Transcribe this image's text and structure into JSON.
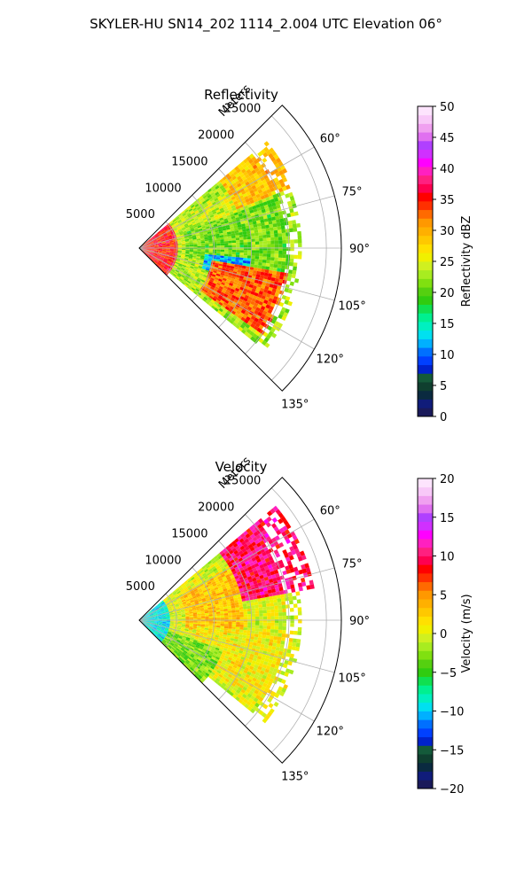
{
  "suptitle": "SKYLER-HU  SN14_202  1114_2.004 UTC Elevation 06°",
  "chart_data": [
    {
      "type": "heatmap",
      "subtype": "polar-sector",
      "title": "Reflectivity",
      "radial_axis_label": "Meters",
      "radial_ticks": [
        5000,
        10000,
        15000,
        20000,
        25000
      ],
      "radial_tick_labels": [
        "5000",
        "10000",
        "15000",
        "20000",
        "25000"
      ],
      "rmax": 27000,
      "azimuth_range_deg": [
        45,
        135
      ],
      "azimuth_ticks_deg": [
        60,
        75,
        90,
        105,
        120,
        135
      ],
      "azimuth_tick_labels": [
        "60°",
        "75°",
        "90°",
        "105°",
        "120°",
        "135°"
      ],
      "grid": true,
      "colorbar": {
        "label": "Reflectivity dBZ",
        "min": 0,
        "max": 50,
        "ticks": [
          0,
          5,
          10,
          15,
          20,
          25,
          30,
          35,
          40,
          45,
          50
        ],
        "tick_labels": [
          "0",
          "5",
          "10",
          "15",
          "20",
          "25",
          "30",
          "35",
          "40",
          "45",
          "50"
        ],
        "colors": [
          "#1a1a5a",
          "#101c7a",
          "#0a2a40",
          "#0f3f2f",
          "#145a3a",
          "#0022cc",
          "#0040ff",
          "#0070ff",
          "#00b0ff",
          "#00e0f0",
          "#00f0c0",
          "#00f090",
          "#10e050",
          "#30cc10",
          "#55d010",
          "#80e010",
          "#a8ec20",
          "#d0f020",
          "#f0f000",
          "#ffe000",
          "#ffc800",
          "#ffb000",
          "#ff9800",
          "#ff6a00",
          "#ff3000",
          "#ff0000",
          "#ff0050",
          "#ff2080",
          "#ff20c0",
          "#ff00ff",
          "#d030ff",
          "#b040ff",
          "#e070f0",
          "#f0a0f0",
          "#f8c8f8",
          "#fde4fd"
        ]
      },
      "regions": [
        {
          "az": [
            50,
            68
          ],
          "r": [
            14000,
            22000
          ],
          "value": 29
        },
        {
          "az": [
            55,
            85
          ],
          "r": [
            2000,
            14000
          ],
          "value": 24
        },
        {
          "az": [
            70,
            100
          ],
          "r": [
            6000,
            20000
          ],
          "value": 21
        },
        {
          "az": [
            95,
            108
          ],
          "r": [
            9000,
            15000
          ],
          "value": 12
        },
        {
          "az": [
            100,
            125
          ],
          "r": [
            10000,
            20000
          ],
          "value": 33
        },
        {
          "az": [
            50,
            135
          ],
          "r": [
            0,
            5000
          ],
          "value": 35
        }
      ]
    },
    {
      "type": "heatmap",
      "subtype": "polar-sector",
      "title": "Velocity",
      "radial_axis_label": "Meters",
      "radial_ticks": [
        5000,
        10000,
        15000,
        20000,
        25000
      ],
      "radial_tick_labels": [
        "5000",
        "10000",
        "15000",
        "20000",
        "25000"
      ],
      "rmax": 27000,
      "azimuth_range_deg": [
        45,
        135
      ],
      "azimuth_ticks_deg": [
        60,
        75,
        90,
        105,
        120,
        135
      ],
      "azimuth_tick_labels": [
        "60°",
        "75°",
        "90°",
        "105°",
        "120°",
        "135°"
      ],
      "grid": true,
      "colorbar": {
        "label": "Velocity (m/s)",
        "min": -20,
        "max": 20,
        "ticks": [
          -20,
          -15,
          -10,
          -5,
          0,
          5,
          10,
          15,
          20
        ],
        "tick_labels": [
          "−20",
          "−15",
          "−10",
          "−5",
          "0",
          "5",
          "10",
          "15",
          "20"
        ],
        "colors": [
          "#1a1a5a",
          "#101c7a",
          "#0a2a40",
          "#0f3f2f",
          "#145a3a",
          "#0022cc",
          "#0040ff",
          "#0070ff",
          "#00b0ff",
          "#00e0f0",
          "#00f0c0",
          "#00f090",
          "#10e050",
          "#30cc10",
          "#55d010",
          "#80e010",
          "#a8ec20",
          "#d0f020",
          "#f0f000",
          "#ffe000",
          "#ffc800",
          "#ffb000",
          "#ff9800",
          "#ff6a00",
          "#ff3000",
          "#ff0000",
          "#ff0050",
          "#ff2080",
          "#ff20c0",
          "#ff00ff",
          "#d030ff",
          "#b040ff",
          "#e070f0",
          "#f0a0f0",
          "#f8c8f8",
          "#fde4fd"
        ]
      },
      "regions": [
        {
          "az": [
            50,
            80
          ],
          "r": [
            14000,
            24000
          ],
          "value": 10
        },
        {
          "az": [
            60,
            100
          ],
          "r": [
            6000,
            14000
          ],
          "value": 3
        },
        {
          "az": [
            95,
            125
          ],
          "r": [
            8000,
            20000
          ],
          "value": 1
        },
        {
          "az": [
            50,
            135
          ],
          "r": [
            0,
            4000
          ],
          "value": -9
        },
        {
          "az": [
            110,
            135
          ],
          "r": [
            4000,
            12000
          ],
          "value": -3
        }
      ]
    }
  ]
}
